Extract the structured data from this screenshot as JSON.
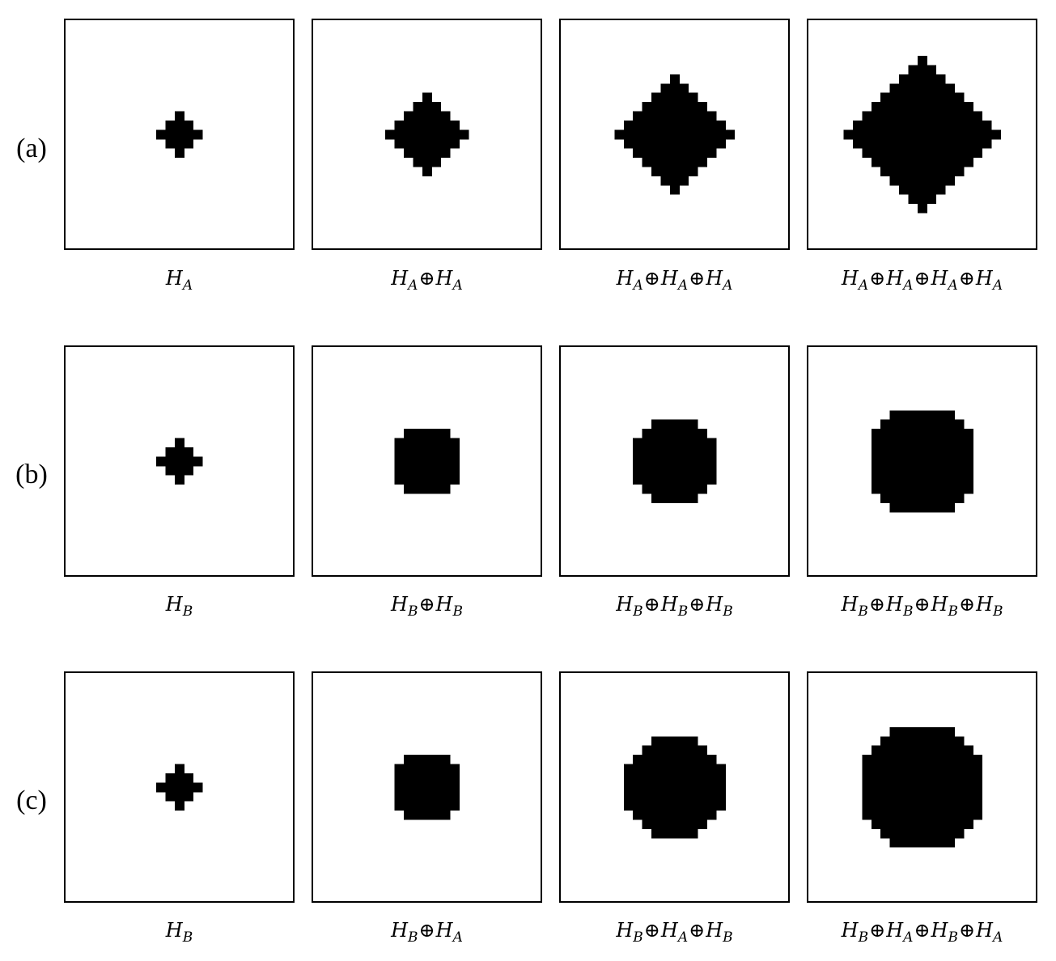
{
  "figure": {
    "rows": [
      {
        "label": "(a)",
        "panels": [
          {
            "caption": "H_A",
            "pattern": "A",
            "radius": 2
          },
          {
            "caption": "H_A⊕H_A",
            "pattern": "A",
            "radius": 4
          },
          {
            "caption": "H_A⊕H_A⊕H_A",
            "pattern": "A",
            "radius": 6
          },
          {
            "caption": "H_A⊕H_A⊕H_A⊕H_A",
            "pattern": "A",
            "radius": 8
          }
        ]
      },
      {
        "label": "(b)",
        "panels": [
          {
            "caption": "H_B",
            "pattern": "B",
            "radius": 2
          },
          {
            "caption": "H_B⊕H_B",
            "pattern": "B",
            "radius": 4
          },
          {
            "caption": "H_B⊕H_B⊕H_B",
            "pattern": "B",
            "radius": 6
          },
          {
            "caption": "H_B⊕H_B⊕H_B⊕H_B",
            "pattern": "B",
            "radius": 8
          }
        ]
      },
      {
        "label": "(c)",
        "panels": [
          {
            "caption": "H_B",
            "pattern": "C",
            "radius": 2
          },
          {
            "caption": "H_B⊕H_A",
            "pattern": "C",
            "radius": 4
          },
          {
            "caption": "H_B⊕H_A⊕H_B",
            "pattern": "C",
            "radius": 6
          },
          {
            "caption": "H_B⊕H_A⊕H_B⊕H_A",
            "pattern": "C",
            "radius": 8
          }
        ]
      }
    ]
  },
  "colors": {
    "foreground": "#000000",
    "background": "#ffffff"
  }
}
